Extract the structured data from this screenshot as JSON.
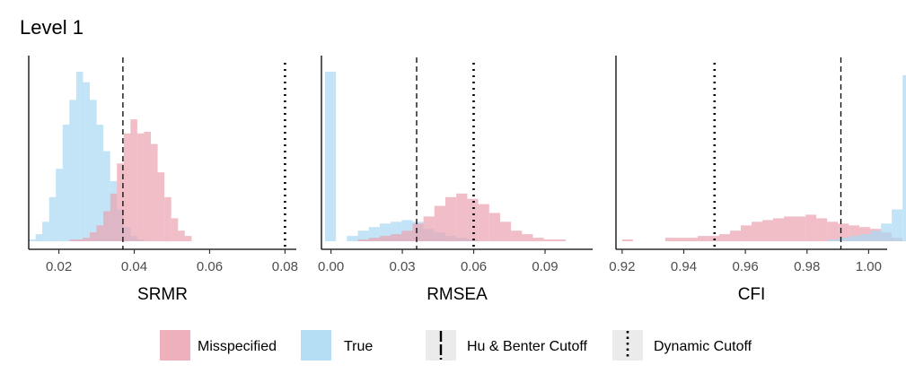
{
  "title": "Level 1",
  "legend": {
    "fill_items": [
      {
        "label": "Misspecified",
        "color": "#EBA3B0"
      },
      {
        "label": "True",
        "color": "#A8D8F2"
      }
    ],
    "line_items": [
      {
        "label": "Hu & Benter Cutoff",
        "linetype": "dashed"
      },
      {
        "label": "Dynamic Cutoff",
        "linetype": "dotted"
      }
    ]
  },
  "chart_data": [
    {
      "type": "histogram",
      "xlabel": "SRMR",
      "xlim": [
        0.012,
        0.083
      ],
      "ticks": [
        0.02,
        0.04,
        0.06,
        0.08
      ],
      "tick_labels": [
        "0.02",
        "0.04",
        "0.06",
        "0.08"
      ],
      "bin_start": 0.012,
      "bin_width": 0.0018,
      "cutoffs": {
        "hu_bentler": 0.037,
        "dynamic": 0.08
      },
      "series": [
        {
          "name": "True",
          "color": "#A8D8F2",
          "start_bin": 0,
          "values": [
            1,
            4,
            11,
            25,
            41,
            66,
            80,
            96,
            90,
            80,
            66,
            51,
            34,
            18,
            8,
            3,
            1
          ]
        },
        {
          "name": "Misspecified",
          "color": "#EBA3B0",
          "start_bin": 6,
          "values": [
            1,
            1,
            2,
            5,
            9,
            17,
            27,
            44,
            61,
            69,
            61,
            62,
            55,
            39,
            25,
            13,
            6,
            3
          ]
        }
      ]
    },
    {
      "type": "histogram",
      "xlabel": "RMSEA",
      "xlim": [
        -0.004,
        0.11
      ],
      "ticks": [
        0.0,
        0.03,
        0.06,
        0.09
      ],
      "tick_labels": [
        "0.00",
        "0.03",
        "0.06",
        "0.09"
      ],
      "bin_start": -0.0025,
      "bin_width": 0.0046,
      "cutoffs": {
        "hu_bentler": 0.036,
        "dynamic": 0.06
      },
      "series": [
        {
          "name": "True",
          "color": "#A8D8F2",
          "start_bin": 0,
          "values": [
            96,
            0,
            3,
            6,
            8,
            10,
            11,
            12,
            11,
            7,
            5,
            3,
            2,
            1
          ]
        },
        {
          "name": "Misspecified",
          "color": "#EBA3B0",
          "start_bin": 3,
          "values": [
            1,
            2,
            3,
            4,
            6,
            10,
            14,
            20,
            25,
            27,
            24,
            21,
            16,
            11,
            6,
            4,
            2,
            1,
            1
          ]
        }
      ]
    },
    {
      "type": "histogram",
      "xlabel": "CFI",
      "xlim": [
        0.918,
        1.006
      ],
      "ticks": [
        0.92,
        0.94,
        0.96,
        0.98,
        1.0
      ],
      "tick_labels": [
        "0.92",
        "0.94",
        "0.96",
        "0.98",
        "1.00"
      ],
      "bin_start": 0.92,
      "bin_width": 0.0035,
      "cutoffs": {
        "hu_bentler": 0.991,
        "dynamic": 0.95
      },
      "series": [
        {
          "name": "Misspecified",
          "color": "#EBA3B0",
          "start_bin": 0,
          "values": [
            1,
            0,
            0,
            0,
            2,
            2,
            2,
            3,
            3,
            4,
            6,
            9,
            11,
            12,
            13,
            14,
            14,
            15,
            13,
            11,
            10,
            9,
            8,
            7,
            5,
            2
          ]
        },
        {
          "name": "True",
          "color": "#A8D8F2",
          "start_bin": 19,
          "values": [
            1,
            2,
            3,
            4,
            6,
            10,
            18,
            94
          ]
        }
      ]
    }
  ]
}
